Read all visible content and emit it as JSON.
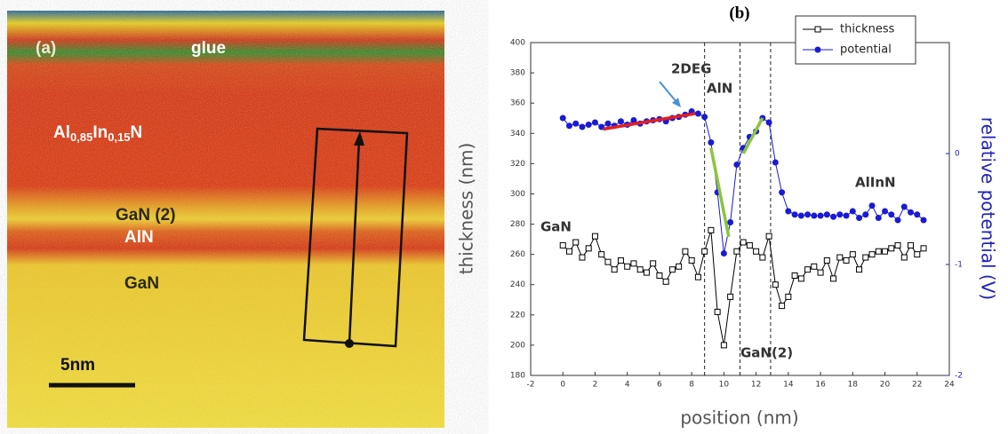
{
  "panel_a": {
    "label": "(a)",
    "glue": "glue",
    "formula": [
      "Al",
      "0,85",
      "In",
      "0,15",
      "N"
    ],
    "layers": [
      "GaN (2)",
      "AlN",
      "GaN"
    ],
    "scale_bar": "5nm"
  },
  "chart_data": {
    "type": "line",
    "title": "(b)",
    "x_label": "position (nm)",
    "y_label": "thickness (nm)",
    "y2_label": "relative potential (V)",
    "x": [
      0,
      0.4,
      0.8,
      1.2,
      1.6,
      2.0,
      2.4,
      2.8,
      3.2,
      3.6,
      4.0,
      4.4,
      4.8,
      5.2,
      5.6,
      6.0,
      6.4,
      6.8,
      7.2,
      7.6,
      8.0,
      8.4,
      8.8,
      9.2,
      9.6,
      10.0,
      10.4,
      10.8,
      11.2,
      11.6,
      12.0,
      12.4,
      12.8,
      13.2,
      13.6,
      14.0,
      14.4,
      14.8,
      15.2,
      15.6,
      16.0,
      16.4,
      16.8,
      17.2,
      17.6,
      18.0,
      18.4,
      18.8,
      19.2,
      19.6,
      20.0,
      20.4,
      20.8,
      21.2,
      21.6,
      22.0,
      22.4
    ],
    "series": [
      {
        "name": "thickness",
        "color": "#000000",
        "marker": "square",
        "values": [
          266,
          262,
          268,
          258,
          264,
          272,
          260,
          255,
          250,
          256,
          252,
          254,
          250,
          248,
          254,
          246,
          242,
          250,
          252,
          262,
          256,
          245,
          262,
          276,
          222,
          200,
          232,
          262,
          268,
          266,
          262,
          258,
          272,
          240,
          226,
          232,
          246,
          244,
          250,
          252,
          248,
          256,
          244,
          258,
          256,
          260,
          250,
          258,
          260,
          262,
          262,
          264,
          266,
          258,
          266,
          260,
          264
        ]
      },
      {
        "name": "potential",
        "color": "#1a1ad6",
        "marker": "circle",
        "axis": "y2",
        "values": [
          0.32,
          0.25,
          0.27,
          0.24,
          0.26,
          0.28,
          0.24,
          0.27,
          0.25,
          0.29,
          0.26,
          0.3,
          0.27,
          0.29,
          0.3,
          0.31,
          0.29,
          0.32,
          0.33,
          0.35,
          0.38,
          0.36,
          0.33,
          0.1,
          -0.35,
          -0.9,
          -0.62,
          -0.1,
          0.05,
          0.15,
          0.2,
          0.32,
          0.28,
          -0.08,
          -0.35,
          -0.52,
          -0.55,
          -0.56,
          -0.55,
          -0.56,
          -0.56,
          -0.55,
          -0.57,
          -0.55,
          -0.56,
          -0.52,
          -0.58,
          -0.55,
          -0.47,
          -0.58,
          -0.52,
          -0.55,
          -0.6,
          -0.48,
          -0.53,
          -0.55,
          -0.6
        ]
      }
    ],
    "fits": [
      {
        "color": "#e02020",
        "x": [
          2.5,
          8.2
        ],
        "values": [
          0.22,
          0.36
        ]
      },
      {
        "color": "#8cc43c",
        "x": [
          9.2,
          10.3
        ],
        "values": [
          0.05,
          -0.75
        ]
      },
      {
        "color": "#8cc43c",
        "x": [
          11.2,
          12.4
        ],
        "values": [
          0.0,
          0.32
        ]
      }
    ],
    "vlines": [
      8.8,
      11,
      12.9
    ],
    "annotations": [
      "2DEG",
      "AlN",
      "GaN",
      "AlInN",
      "GaN(2)"
    ],
    "xlim": [
      -2,
      24
    ],
    "xticks": [
      -2,
      0,
      2,
      4,
      6,
      8,
      10,
      12,
      14,
      16,
      18,
      20,
      22,
      24
    ],
    "ylim": [
      180,
      400
    ],
    "yticks": [
      180,
      200,
      220,
      240,
      260,
      280,
      300,
      320,
      340,
      360,
      380,
      400
    ],
    "y2lim": [
      -2,
      1
    ],
    "y2ticks": [
      -2,
      -1,
      0
    ],
    "legend": "upper right"
  }
}
